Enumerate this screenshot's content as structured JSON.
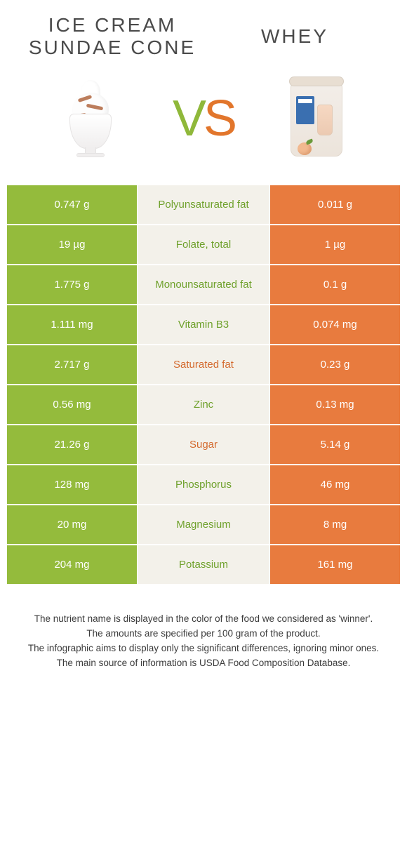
{
  "foods": {
    "left": {
      "title": "Ice cream sundae cone"
    },
    "right": {
      "title": "Whey"
    }
  },
  "vs": {
    "v": "V",
    "s": "S"
  },
  "colors": {
    "left_bg": "#94bb3c",
    "right_bg": "#e87b3e",
    "mid_bg": "#f3f1ea",
    "nut_green": "#6fa12c",
    "nut_orange": "#d46a2e"
  },
  "rows": [
    {
      "left": "0.747 g",
      "nutrient": "Polyunsaturated fat",
      "right": "0.011 g",
      "winner": "left"
    },
    {
      "left": "19 µg",
      "nutrient": "Folate, total",
      "right": "1 µg",
      "winner": "left"
    },
    {
      "left": "1.775 g",
      "nutrient": "Monounsaturated fat",
      "right": "0.1 g",
      "winner": "left"
    },
    {
      "left": "1.111 mg",
      "nutrient": "Vitamin B3",
      "right": "0.074 mg",
      "winner": "left"
    },
    {
      "left": "2.717 g",
      "nutrient": "Saturated fat",
      "right": "0.23 g",
      "winner": "right"
    },
    {
      "left": "0.56 mg",
      "nutrient": "Zinc",
      "right": "0.13 mg",
      "winner": "left"
    },
    {
      "left": "21.26 g",
      "nutrient": "Sugar",
      "right": "5.14 g",
      "winner": "right"
    },
    {
      "left": "128 mg",
      "nutrient": "Phosphorus",
      "right": "46 mg",
      "winner": "left"
    },
    {
      "left": "20 mg",
      "nutrient": "Magnesium",
      "right": "8 mg",
      "winner": "left"
    },
    {
      "left": "204 mg",
      "nutrient": "Potassium",
      "right": "161 mg",
      "winner": "left"
    }
  ],
  "footnotes": [
    "The nutrient name is displayed in the color of the food we considered as 'winner'.",
    "The amounts are specified per 100 gram of the product.",
    "The infographic aims to display only the significant differences, ignoring minor ones.",
    "The main source of information is USDA Food Composition Database."
  ]
}
